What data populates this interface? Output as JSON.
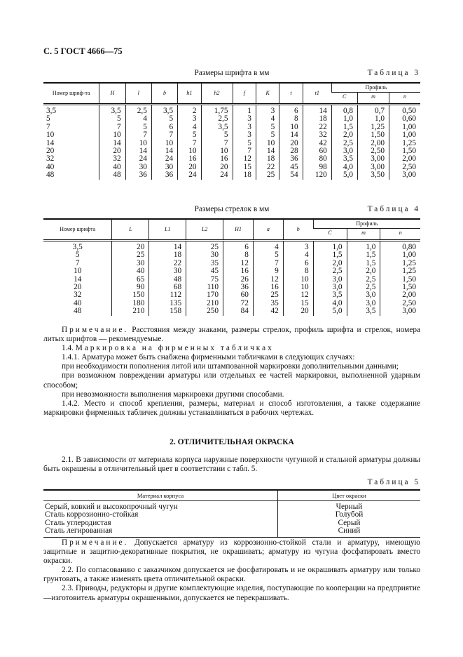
{
  "header": "С. 5 ГОСТ 4666—75",
  "table3": {
    "caption": "Размеры шрифта в мм",
    "label": "Таблица 3",
    "col_first": "Номер шриф-та",
    "cols": [
      "H",
      "l",
      "b",
      "h1",
      "h2",
      "f",
      "K",
      "t",
      "t1"
    ],
    "profile_label": "Профиль",
    "profile_cols": [
      "C",
      "m",
      "n"
    ],
    "rows": [
      [
        "3,5",
        "3,5",
        "2,5",
        "3,5",
        "2",
        "1,75",
        "1",
        "3",
        "6",
        "14",
        "0,8",
        "0,7",
        "0,50"
      ],
      [
        "5",
        "5",
        "4",
        "5",
        "3",
        "2,5",
        "3",
        "4",
        "8",
        "18",
        "1,0",
        "1,0",
        "0,60"
      ],
      [
        "7",
        "7",
        "5",
        "6",
        "4",
        "3,5",
        "3",
        "5",
        "10",
        "22",
        "1,5",
        "1,25",
        "1,00"
      ],
      [
        "10",
        "10",
        "7",
        "7",
        "5",
        "5",
        "3",
        "5",
        "14",
        "32",
        "2,0",
        "1,50",
        "1,00"
      ],
      [
        "14",
        "14",
        "10",
        "10",
        "7",
        "7",
        "5",
        "10",
        "20",
        "42",
        "2,5",
        "2,00",
        "1,25"
      ],
      [
        "20",
        "20",
        "14",
        "14",
        "10",
        "10",
        "7",
        "14",
        "28",
        "60",
        "3,0",
        "2,50",
        "1,50"
      ],
      [
        "32",
        "32",
        "24",
        "24",
        "16",
        "16",
        "12",
        "18",
        "36",
        "80",
        "3,5",
        "3,00",
        "2,00"
      ],
      [
        "40",
        "40",
        "30",
        "30",
        "20",
        "20",
        "15",
        "22",
        "45",
        "98",
        "4,0",
        "3,00",
        "2,50"
      ],
      [
        "48",
        "48",
        "36",
        "36",
        "24",
        "24",
        "18",
        "25",
        "54",
        "120",
        "5,0",
        "3,50",
        "3,00"
      ]
    ]
  },
  "table4": {
    "caption": "Размеры стрелок в мм",
    "label": "Таблица 4",
    "col_first": "Номер шрифта",
    "cols": [
      "L",
      "L1",
      "L2",
      "H1",
      "a",
      "b"
    ],
    "profile_label": "Профиль",
    "profile_cols": [
      "C",
      "m",
      "n"
    ],
    "rows": [
      [
        "3,5",
        "20",
        "14",
        "25",
        "6",
        "4",
        "3",
        "1,0",
        "1,0",
        "0,80"
      ],
      [
        "5",
        "25",
        "18",
        "30",
        "8",
        "5",
        "4",
        "1,5",
        "1,5",
        "1,00"
      ],
      [
        "7",
        "30",
        "22",
        "35",
        "12",
        "7",
        "6",
        "2,0",
        "1,5",
        "1,25"
      ],
      [
        "10",
        "40",
        "30",
        "45",
        "16",
        "9",
        "8",
        "2,5",
        "2,0",
        "1,25"
      ],
      [
        "14",
        "65",
        "48",
        "75",
        "26",
        "12",
        "10",
        "3,0",
        "2,5",
        "1,50"
      ],
      [
        "20",
        "90",
        "68",
        "110",
        "36",
        "16",
        "10",
        "3,0",
        "2,5",
        "1,50"
      ],
      [
        "32",
        "150",
        "112",
        "170",
        "60",
        "25",
        "12",
        "3,5",
        "3,0",
        "2,00"
      ],
      [
        "40",
        "180",
        "135",
        "210",
        "72",
        "35",
        "15",
        "4,0",
        "3,0",
        "2,50"
      ],
      [
        "48",
        "210",
        "158",
        "250",
        "84",
        "42",
        "20",
        "5,0",
        "3,5",
        "3,00"
      ]
    ]
  },
  "note1": {
    "label": "Примечание.",
    "text": " Расстояния между знаками, размеры стрелок, профиль шрифта и стрелок, номера литых шрифтов — рекомендуемые."
  },
  "sec14": {
    "num": "1.4. ",
    "title": "Маркировка на фирменных табличках"
  },
  "p141": "1.4.1. Арматура может быть снабжена фирменными табличками в следующих случаях:",
  "p141a": "при необходимости пополнения литой или штампованной маркировки дополнительными данными;",
  "p141b": "при возможном повреждении арматуры или отдельных ее частей маркировки, выполненной ударным способом;",
  "p141c": "при невозможности выполнения маркировки другими способами.",
  "p142": "1.4.2. Место и способ крепления, размеры, материал и способ изготовления, а также содержание маркировки фирменных табличек должны устанавливаться в рабочих чертежах.",
  "sec2": "2. ОТЛИЧИТЕЛЬНАЯ ОКРАСКА",
  "p21": "2.1. В зависимости от материала корпуса наружные поверхности чугунной и стальной арматуры должны быть окрашены в отличительный цвет в соответствии с табл. 5.",
  "table5": {
    "label": "Таблица 5",
    "headers": [
      "Материал корпуса",
      "Цвет окраски"
    ],
    "rows": [
      [
        "Серый, ковкий и высокопрочный чугун",
        "Черный"
      ],
      [
        "Сталь коррозионно-стойкая",
        "Голубой"
      ],
      [
        "Сталь углеродистая",
        "Серый"
      ],
      [
        "Сталь легированная",
        "Синий"
      ]
    ]
  },
  "note2": {
    "label": "Примечание.",
    "text": " Допускается арматуру из коррозионно-стойкой стали и арматуру, имеющую защитные и защитно-декоративные покрытия, не окрашивать; арматуру из чугуна фосфатировать вместо окраски."
  },
  "p22": "2.2. По согласованию с заказчиком допускается не фосфатировать и не окрашивать арматуру или только грунтовать, а также изменять цвета отличительной окраски.",
  "p23": "2.3. Приводы, редукторы и другие комплектующие изделия, поступающие по кооперации на предприятие—изготовитель арматуры окрашенными, допускается не перекрашивать."
}
